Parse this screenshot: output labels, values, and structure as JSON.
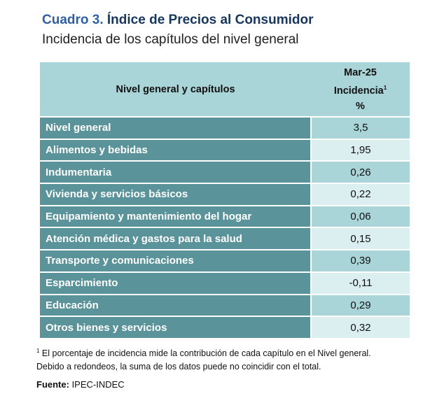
{
  "header": {
    "label": "Cuadro 3.",
    "title": "Índice de Precios al Consumidor",
    "subtitle": "Incidencia de los capítulos del nivel general"
  },
  "table": {
    "col_name_header": "Nivel general y capítulos",
    "col_val_line1": "Mar-25",
    "col_val_line2": "Incidencia",
    "col_val_sup": "1",
    "col_val_line3": "%",
    "rows": [
      {
        "name": "Nivel general",
        "value": "3,5"
      },
      {
        "name": "Alimentos y bebidas",
        "value": "1,95"
      },
      {
        "name": "Indumentaria",
        "value": "0,26"
      },
      {
        "name": "Vivienda y servicios básicos",
        "value": "0,22"
      },
      {
        "name": "Equipamiento y mantenimiento del hogar",
        "value": "0,06"
      },
      {
        "name": "Atención médica y gastos para la salud",
        "value": "0,15"
      },
      {
        "name": "Transporte y comunicaciones",
        "value": "0,39"
      },
      {
        "name": "Esparcimiento",
        "value": "-0,11"
      },
      {
        "name": "Educación",
        "value": "0,29"
      },
      {
        "name": "Otros bienes y servicios",
        "value": "0,32"
      }
    ]
  },
  "footnote": {
    "marker": "1",
    "line1": " El porcentaje de incidencia mide la contribución de cada capítulo en el Nivel general.",
    "line2": "Debido a redondeos, la suma de los datos puede no coincidir con el total."
  },
  "source": {
    "label": "Fuente:",
    "text": " IPEC-INDEC"
  }
}
